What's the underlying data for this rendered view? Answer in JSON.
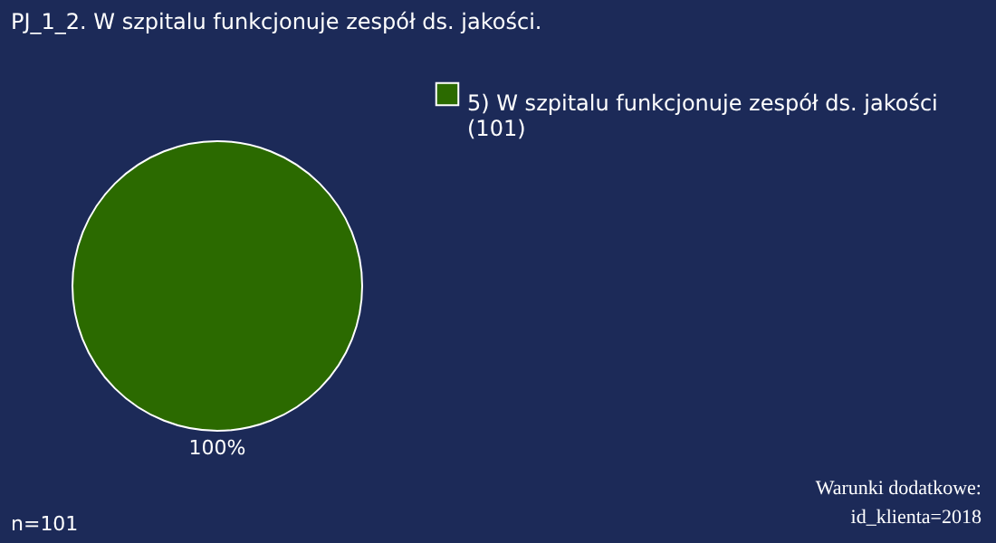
{
  "chart_data": {
    "type": "pie",
    "title": "PJ_1_2. W szpitalu funkcjonuje zespół ds. jakości.",
    "categories": [
      "5) W szpitalu funkcjonuje zespół ds. jakości (101)"
    ],
    "values": [
      100
    ],
    "colors": [
      "#2b6a00"
    ],
    "value_labels": [
      "100%"
    ],
    "legend": "top right",
    "annotations": [
      "n=101",
      "Warunki dodatkowe:\nid_klienta=2018"
    ]
  }
}
